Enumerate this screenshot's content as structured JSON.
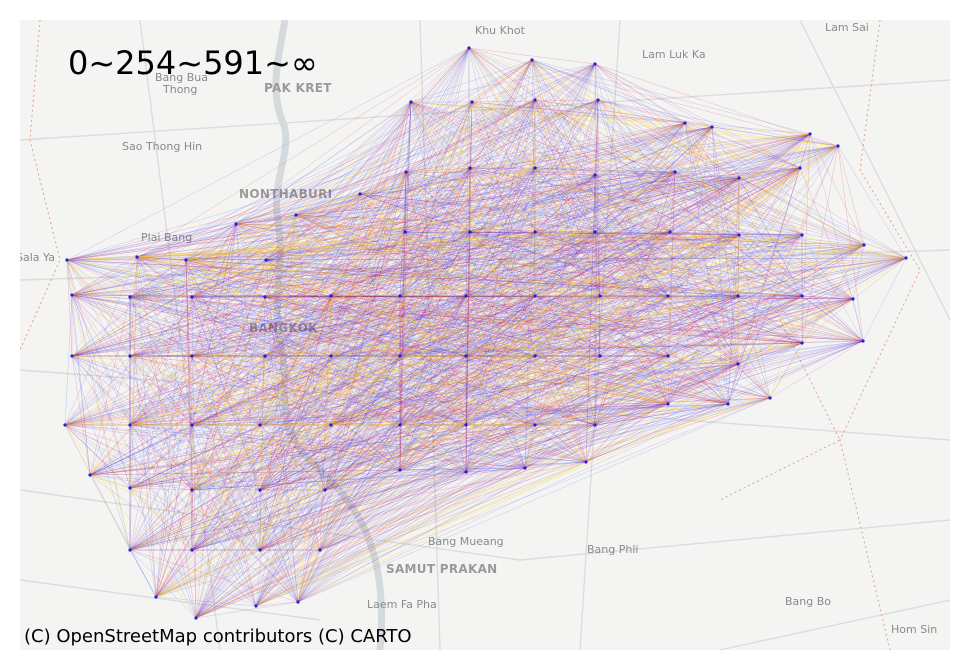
{
  "map": {
    "legend_text": "0~254~591~∞",
    "attribution": "(C) OpenStreetMap contributors (C) CARTO",
    "places": [
      {
        "id": "khu-khot",
        "name": "Khu Khot",
        "major": false
      },
      {
        "id": "lam-sai",
        "name": "Lam Sai",
        "major": false
      },
      {
        "id": "lam-luk-ka",
        "name": "Lam Luk Ka",
        "major": false
      },
      {
        "id": "bang-bua-thong-1",
        "name": "Bang Bua",
        "major": false
      },
      {
        "id": "bang-bua-thong-2",
        "name": "Thong",
        "major": false
      },
      {
        "id": "pak-kret",
        "name": "PAK KRET",
        "major": true
      },
      {
        "id": "sao-thong-hin",
        "name": "Sao Thong Hin",
        "major": false
      },
      {
        "id": "nonthaburi",
        "name": "NONTHABURI",
        "major": true
      },
      {
        "id": "plai-bang",
        "name": "Plai Bang",
        "major": false
      },
      {
        "id": "sala-ya",
        "name": "Sala Ya",
        "major": false
      },
      {
        "id": "bangkok",
        "name": "BANGKOK",
        "major": true
      },
      {
        "id": "bang-mueang",
        "name": "Bang Mueang",
        "major": false
      },
      {
        "id": "bang-phli",
        "name": "Bang Phli",
        "major": false
      },
      {
        "id": "samut-prakan",
        "name": "SAMUT PRAKAN",
        "major": true
      },
      {
        "id": "laem-fa-pha",
        "name": "Laem Fa Pha",
        "major": false
      },
      {
        "id": "bang-bo",
        "name": "Bang Bo",
        "major": false
      },
      {
        "id": "hom-sin",
        "name": "Hom Sin",
        "major": false
      }
    ],
    "edge_colors": {
      "low": "#1f1fe6",
      "mid": "#e01040",
      "high": "#ffcc00"
    },
    "basemap_colors": {
      "land": "#f4f4f2",
      "road": "#dcdcdc",
      "water": "#d4dadd",
      "boundary": "#e0a090"
    }
  }
}
